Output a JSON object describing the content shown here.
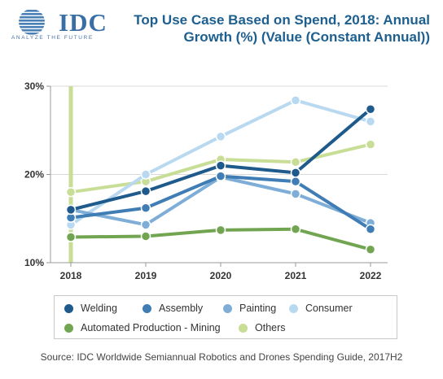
{
  "logo": {
    "wordmark": "IDC",
    "tagline": "ANALYZE THE FUTURE",
    "globe_color": "#4a7fb8"
  },
  "header": {
    "title_line1": "Top Use Case Based on Spend, 2018: Annual",
    "title_line2": "Growth (%) (Value (Constant Annual))"
  },
  "chart_data": {
    "type": "line",
    "x": [
      "2018",
      "2019",
      "2020",
      "2021",
      "2022"
    ],
    "ylim": [
      10,
      30
    ],
    "yticks": [
      "10%",
      "20%",
      "30%"
    ],
    "grid": true,
    "highlight_category": "2018",
    "legend_position": "bottom",
    "series": [
      {
        "name": "Welding",
        "color": "#1f5a8c",
        "values": [
          16.0,
          18.1,
          21.0,
          20.2,
          27.4
        ]
      },
      {
        "name": "Assembly",
        "color": "#3f7db4",
        "values": [
          15.1,
          16.2,
          19.8,
          19.2,
          13.8
        ]
      },
      {
        "name": "Painting",
        "color": "#7eaed8",
        "values": [
          16.0,
          14.3,
          19.7,
          17.8,
          14.5
        ]
      },
      {
        "name": "Consumer",
        "color": "#b9d9f1",
        "values": [
          14.3,
          20.0,
          24.3,
          28.4,
          26.0
        ]
      },
      {
        "name": "Automated Production - Mining",
        "color": "#72a551",
        "values": [
          12.9,
          13.0,
          13.7,
          13.8,
          11.5
        ]
      },
      {
        "name": "Others",
        "color": "#c8dd95",
        "values": [
          18.0,
          19.2,
          21.7,
          21.4,
          23.4
        ]
      }
    ]
  },
  "legend": {
    "items": [
      {
        "label": "Welding",
        "color": "#1f5a8c"
      },
      {
        "label": "Assembly",
        "color": "#3f7db4"
      },
      {
        "label": "Painting",
        "color": "#7eaed8"
      },
      {
        "label": "Consumer",
        "color": "#b9d9f1"
      },
      {
        "label": "Automated Production - Mining",
        "color": "#72a551"
      },
      {
        "label": "Others",
        "color": "#c8dd95"
      }
    ]
  },
  "footer": {
    "source": "Source: IDC Worldwide Semiannual Robotics and Drones Spending Guide, 2017H2"
  }
}
